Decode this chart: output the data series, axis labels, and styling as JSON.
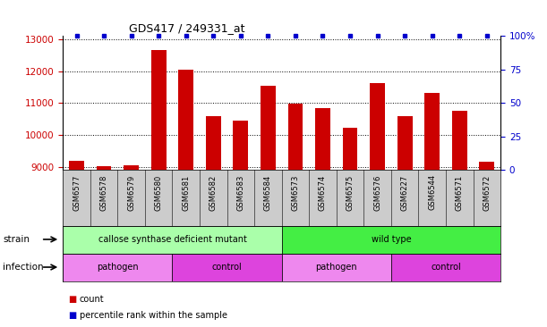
{
  "title": "GDS417 / 249331_at",
  "samples": [
    "GSM6577",
    "GSM6578",
    "GSM6579",
    "GSM6580",
    "GSM6581",
    "GSM6582",
    "GSM6583",
    "GSM6584",
    "GSM6573",
    "GSM6574",
    "GSM6575",
    "GSM6576",
    "GSM6227",
    "GSM6544",
    "GSM6571",
    "GSM6572"
  ],
  "counts": [
    9180,
    9020,
    9050,
    12650,
    12050,
    10600,
    10450,
    11550,
    10980,
    10850,
    10220,
    11620,
    10580,
    11320,
    10760,
    9170
  ],
  "percentiles": [
    100,
    100,
    100,
    100,
    100,
    100,
    100,
    100,
    100,
    100,
    100,
    100,
    100,
    100,
    100,
    100
  ],
  "bar_color": "#cc0000",
  "percentile_color": "#0000cc",
  "ylim_left": [
    8900,
    13100
  ],
  "ylim_right": [
    0,
    100
  ],
  "yticks_left": [
    9000,
    10000,
    11000,
    12000,
    13000
  ],
  "yticks_right": [
    0,
    25,
    50,
    75,
    100
  ],
  "ytick_right_labels": [
    "0",
    "25",
    "50",
    "75",
    "100%"
  ],
  "strain_groups": [
    {
      "label": "callose synthase deficient mutant",
      "start": 0,
      "end": 8,
      "color": "#aaffaa"
    },
    {
      "label": "wild type",
      "start": 8,
      "end": 16,
      "color": "#44ee44"
    }
  ],
  "infection_groups": [
    {
      "label": "pathogen",
      "start": 0,
      "end": 4,
      "color": "#ee88ee"
    },
    {
      "label": "control",
      "start": 4,
      "end": 8,
      "color": "#dd44dd"
    },
    {
      "label": "pathogen",
      "start": 8,
      "end": 12,
      "color": "#ee88ee"
    },
    {
      "label": "control",
      "start": 12,
      "end": 16,
      "color": "#dd44dd"
    }
  ],
  "tick_color_left": "#cc0000",
  "tick_color_right": "#0000cc",
  "grid_color": "#000000",
  "bar_width": 0.55,
  "sample_bg_color": "#cccccc",
  "legend_count_color": "#cc0000",
  "legend_percentile_color": "#0000cc"
}
